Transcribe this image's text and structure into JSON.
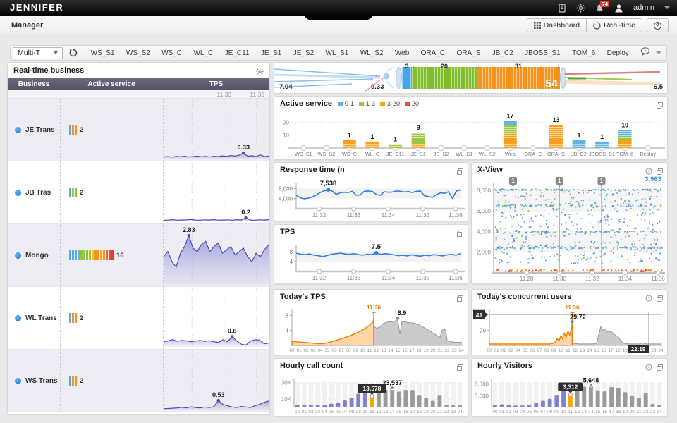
{
  "header": {
    "logo": "JENNIFER",
    "admin_label": "admin",
    "badge_count": "74"
  },
  "nav": {
    "breadcrumb": "Manager",
    "dashboard_btn": "Dashboard",
    "realtime_btn": "Real-time",
    "help_label": "?"
  },
  "toolbar": {
    "selector": "Multi-T",
    "tabs": [
      "WS_S1",
      "WS_S2",
      "WS_C",
      "WL_C",
      "JE_C11",
      "JE_S1",
      "JE_S2",
      "WL_S1",
      "WL_S2",
      "Web",
      "ORA_C",
      "ORA_S",
      "JB_C2",
      "JBOSS_S1",
      "TOM_6",
      "Deploy"
    ]
  },
  "business_panel": {
    "title": "Real-time business",
    "columns": [
      "Business",
      "Active service",
      "TPS"
    ],
    "times": [
      "11:33",
      "11:35"
    ],
    "rows": [
      {
        "name": "JE Trans",
        "count": "2",
        "shaded": true,
        "bars": [
          "#55a9e8",
          "#f7941d",
          "#f7941d"
        ]
      },
      {
        "name": "JB Tras",
        "count": "2",
        "shaded": false,
        "bars": [
          "#55a9e8",
          "#9dc63e",
          "#8bc02e"
        ]
      },
      {
        "name": "Mongo",
        "count": "16",
        "shaded": true,
        "bars": [
          "#55a9e8",
          "#55a9e8",
          "#55a9e8",
          "#6ab0e0",
          "#8cc63e",
          "#9dc63e",
          "#8bc02e",
          "#9dc63e",
          "#f7c51d",
          "#f7941d",
          "#f7941d",
          "#f7a41d",
          "#f7941d",
          "#ef6c1d",
          "#e8483f",
          "#e03a2f"
        ]
      },
      {
        "name": "WL Trans",
        "count": "2",
        "shaded": false,
        "bars": [
          "#55a9e8",
          "#f7941d",
          "#f7941d"
        ]
      },
      {
        "name": "WS Trans",
        "count": "2",
        "shaded": true,
        "bars": [
          "#55a9e8",
          "#f7941d",
          "#f7941d"
        ]
      }
    ]
  },
  "chart_data": [
    {
      "id": "business_tps",
      "type": "line",
      "ylim": [
        0,
        3
      ],
      "series": [
        {
          "name": "JE Trans",
          "peak_label": "0.33",
          "peak_index": 19,
          "values": [
            0.1,
            0.12,
            0.09,
            0.13,
            0.11,
            0.14,
            0.1,
            0.12,
            0.15,
            0.11,
            0.13,
            0.1,
            0.14,
            0.12,
            0.16,
            0.13,
            0.18,
            0.15,
            0.2,
            0.33,
            0.14,
            0.17,
            0.12,
            0.22,
            0.12,
            0.15
          ]
        },
        {
          "name": "JB Tras",
          "peak_label": "0.2",
          "peak_index": 18,
          "values": [
            0.07,
            0.08,
            0.1,
            0.07,
            0.08,
            0.09,
            0.11,
            0.08,
            0.07,
            0.09,
            0.08,
            0.1,
            0.07,
            0.08,
            0.09,
            0.07,
            0.1,
            0.08,
            0.2,
            0.08,
            0.07,
            0.09,
            0.08,
            0.1
          ]
        },
        {
          "name": "Mongo",
          "peak_label": "2.83",
          "peak_index": 6,
          "values": [
            1.6,
            1.9,
            1.3,
            1.0,
            1.8,
            2.2,
            2.83,
            2.1,
            1.9,
            2.3,
            2.5,
            1.9,
            2.2,
            2.4,
            1.8,
            2.0,
            2.2,
            1.7,
            1.9,
            2.1,
            1.6,
            1.3,
            1.8,
            1.6,
            2.0,
            2.3
          ]
        },
        {
          "name": "WL Trans",
          "peak_label": "0.6",
          "peak_index": 15,
          "values": [
            0.3,
            0.35,
            0.42,
            0.33,
            0.38,
            0.35,
            0.3,
            0.34,
            0.38,
            0.32,
            0.36,
            0.3,
            0.25,
            0.42,
            0.3,
            0.6,
            0.34,
            0.16,
            0.1,
            0.34,
            0.42,
            0.4,
            0.18,
            0.22
          ]
        },
        {
          "name": "WS Trans",
          "peak_label": "0.53",
          "peak_index": 12,
          "values": [
            0.05,
            0.06,
            0.08,
            0.1,
            0.13,
            0.1,
            0.16,
            0.12,
            0.1,
            0.15,
            0.12,
            0.17,
            0.53,
            0.3,
            0.22,
            0.15,
            0.12,
            0.18,
            0.15,
            0.12,
            0.22,
            0.3,
            0.42,
            0.5
          ]
        }
      ]
    },
    {
      "id": "tube",
      "type": "other",
      "left_value": "7.04",
      "drop_value": "0.33",
      "segments": [
        {
          "label": "3",
          "color": "#45a6e8",
          "width": 14
        },
        {
          "label": "20",
          "color": "#83bd2d",
          "width": 92
        },
        {
          "label": "31",
          "color": "#f7941d",
          "width": 118
        }
      ],
      "total": "54",
      "right_value": "6.5"
    },
    {
      "id": "active_service",
      "type": "bar",
      "title": "Active service",
      "legend": [
        {
          "label": "0-1",
          "color": "#64b1e4"
        },
        {
          "label": "1-3",
          "color": "#9dc640"
        },
        {
          "label": "3-20",
          "color": "#f7a01d"
        },
        {
          "label": "20-",
          "color": "#e8483f"
        }
      ],
      "categories": [
        "WS_S1",
        "WS_S2",
        "WS_C",
        "WL_C",
        "JE_C11",
        "JE_S1",
        "JE_S2",
        "WL_S1",
        "WL_S2",
        "Web",
        "ORA_C",
        "ORA_S",
        "JB_C2",
        "JBOSS_S1",
        "TOM_6",
        "Deploy"
      ],
      "ylim": [
        0,
        24
      ],
      "yticks": [
        10,
        20
      ],
      "stacks": [
        {
          "orange": 0,
          "green": 0,
          "blue": 0,
          "label": ""
        },
        {
          "orange": 0,
          "green": 0,
          "blue": 0,
          "label": ""
        },
        {
          "orange": 6,
          "green": 0,
          "blue": 0,
          "label": "1"
        },
        {
          "orange": 5,
          "green": 0,
          "blue": 0,
          "label": "1"
        },
        {
          "orange": 0,
          "green": 3,
          "blue": 0,
          "label": "1"
        },
        {
          "orange": 3,
          "green": 9,
          "blue": 0,
          "label": "9"
        },
        {
          "orange": 0,
          "green": 0,
          "blue": 0,
          "label": ""
        },
        {
          "orange": 0,
          "green": 0,
          "blue": 0,
          "label": ""
        },
        {
          "orange": 0,
          "green": 0,
          "blue": 0,
          "label": ""
        },
        {
          "orange": 12,
          "green": 6,
          "blue": 3,
          "label": "17"
        },
        {
          "orange": 0,
          "green": 0,
          "blue": 0,
          "label": ""
        },
        {
          "orange": 18,
          "green": 0,
          "blue": 0,
          "label": "13"
        },
        {
          "orange": 0,
          "green": 0,
          "blue": 6,
          "label": "1"
        },
        {
          "orange": 0,
          "green": 0,
          "blue": 5,
          "label": "1"
        },
        {
          "orange": 6,
          "green": 3,
          "blue": 5,
          "label": "10"
        },
        {
          "orange": 0,
          "green": 0,
          "blue": 0,
          "label": ""
        }
      ]
    },
    {
      "id": "response_time",
      "type": "line",
      "title": "Response time (n",
      "ylim": [
        0,
        9500
      ],
      "band": [
        4000,
        8000
      ],
      "yticks": [
        {
          "v": 4000,
          "label": "4,000"
        },
        {
          "v": 8000,
          "label": "8,000"
        }
      ],
      "xticks": [
        "11:32",
        "11:33",
        "11:34",
        "11:35",
        "11:36"
      ],
      "peak": {
        "index": 8,
        "label": "7,538"
      },
      "values": [
        5300,
        4300,
        3950,
        4200,
        4650,
        5400,
        6400,
        7100,
        7538,
        6900,
        5700,
        6350,
        6500,
        6400,
        6900,
        5300,
        5500,
        6900,
        7000,
        6850,
        5600,
        5300,
        6700,
        6500,
        6600,
        7000,
        6900,
        6600,
        6800,
        6400,
        6900,
        7000,
        5100,
        4800,
        4500,
        5600,
        6300,
        6100,
        6700,
        4100,
        7000,
        7400
      ]
    },
    {
      "id": "xview",
      "type": "scatter",
      "title": "X-View",
      "count_label": "3,963",
      "ylim": [
        0,
        8400
      ],
      "yticks": [
        {
          "v": 2000,
          "label": "2,000"
        },
        {
          "v": 4000,
          "label": "4,000"
        },
        {
          "v": 6000,
          "label": "6,000"
        },
        {
          "v": 8000,
          "label": "8,000"
        }
      ],
      "xticks": [
        "11:28",
        "11:30",
        "11:32",
        "11:34",
        "11:36"
      ],
      "flags": [
        {
          "label": "1",
          "x": 0.115
        },
        {
          "label": "1",
          "x": 0.39
        },
        {
          "label": "1",
          "x": 0.64
        }
      ],
      "seed": 11,
      "bands": [
        {
          "y": 8050,
          "n": 110,
          "jitter": 70
        },
        {
          "y": 6500,
          "n": 55,
          "jitter": 90
        },
        {
          "y": 3950,
          "n": 70,
          "jitter": 100
        },
        {
          "y": 2450,
          "n": 85,
          "jitter": 100
        }
      ],
      "uniform": {
        "n": 430,
        "lo": 900,
        "hi": 7900
      },
      "bottom": {
        "n": 70
      },
      "palette": [
        "#3b6fd4",
        "#58a7e0",
        "#7ab648",
        "#7d7ddc",
        "#39b0c4"
      ],
      "bottom_palette": [
        "#f7941d",
        "#e8483f"
      ]
    },
    {
      "id": "tps",
      "type": "line",
      "title": "TPS",
      "ylim": [
        0,
        10
      ],
      "band": [
        4,
        8
      ],
      "yticks": [
        {
          "v": 4,
          "label": "4"
        },
        {
          "v": 8,
          "label": "8"
        }
      ],
      "xticks": [
        "11:32",
        "11:33",
        "11:34",
        "11:35",
        "11:36"
      ],
      "peak": {
        "index": 18,
        "label": "7.5"
      },
      "values": [
        7.4,
        7.0,
        6.8,
        7.1,
        6.6,
        6.4,
        6.0,
        6.5,
        7.0,
        7.2,
        7.4,
        7.1,
        6.9,
        7.2,
        6.8,
        6.6,
        7.0,
        6.8,
        7.5,
        6.9,
        7.2,
        7.0,
        6.7,
        6.4,
        6.6,
        6.3,
        6.7,
        6.4,
        6.2,
        6.6,
        6.4,
        6.8,
        6.6,
        6.3,
        6.7,
        6.9,
        6.6,
        7.2
      ]
    },
    {
      "id": "todays_tps",
      "type": "area",
      "title": "Today's TPS",
      "ylim": [
        0,
        9
      ],
      "xlim": [
        0,
        24
      ],
      "yticks": [
        {
          "v": 4,
          "label": "4"
        },
        {
          "v": 8,
          "label": "8"
        }
      ],
      "xticks": [
        "00",
        "01",
        "02",
        "03",
        "04",
        "05",
        "06",
        "07",
        "08",
        "09",
        "10",
        "11",
        "12",
        "13",
        "14",
        "15",
        "16",
        "17",
        "18",
        "19",
        "20",
        "21",
        "22",
        "23",
        "24"
      ],
      "now": {
        "x": 11.6,
        "label": "11:36"
      },
      "peak": {
        "x": 15,
        "y": 6.9,
        "label": "6.9"
      },
      "today": {
        "x": [
          0,
          0.5,
          1,
          1.5,
          2,
          2.5,
          3,
          3.5,
          4,
          4.5,
          5,
          5.5,
          6,
          6.5,
          7,
          7.5,
          8,
          8.5,
          9,
          9.5,
          10,
          10.5,
          11,
          11.5,
          11.6
        ],
        "v": [
          1.1,
          1.0,
          0.9,
          0.85,
          0.8,
          0.7,
          0.6,
          0.5,
          0.45,
          0.5,
          0.7,
          0.9,
          1.2,
          1.5,
          1.8,
          2.1,
          2.4,
          2.8,
          3.2,
          3.6,
          4.1,
          4.7,
          5.4,
          6.2,
          7.2
        ]
      },
      "yesterday": {
        "x": [
          11.6,
          12,
          12.5,
          13,
          13.5,
          14,
          14.5,
          15,
          15.3,
          15.6,
          16,
          16.5,
          17,
          17.5,
          18,
          18.5,
          19,
          19.5,
          20,
          20.5,
          21,
          21.3,
          21.8,
          22,
          22.5,
          23,
          23.5,
          24
        ],
        "v": [
          5.1,
          4.6,
          4.9,
          5.9,
          6.2,
          6.3,
          6.4,
          6.9,
          3.0,
          6.4,
          6.3,
          6.1,
          6.0,
          5.8,
          5.5,
          5.0,
          4.5,
          3.9,
          3.3,
          2.7,
          2.2,
          4.1,
          4.2,
          1.3,
          1.0,
          0.9,
          0.8,
          0.9
        ]
      }
    },
    {
      "id": "concurrent",
      "type": "area",
      "title": "Today's concurrent users",
      "ylim": [
        0,
        45
      ],
      "xlim": [
        0,
        24
      ],
      "yticks": [
        {
          "v": 20,
          "label": "20"
        }
      ],
      "maxline": {
        "v": 41,
        "label": "41"
      },
      "xticks": [
        "00",
        "01",
        "02",
        "03",
        "04",
        "05",
        "06",
        "07",
        "08",
        "09",
        "10",
        "11",
        "12",
        "13",
        "14",
        "15",
        "16",
        "17",
        "18",
        "19",
        "20",
        "21",
        "22",
        "23",
        "24"
      ],
      "now": {
        "x": 11.6,
        "label": "11:36"
      },
      "peak": {
        "x": 11.6,
        "y": 29.72,
        "label": "29.72"
      },
      "marker": {
        "x": 22.32,
        "label": "22:19"
      },
      "today": {
        "x": [
          0,
          0.5,
          1,
          1.5,
          2,
          2.5,
          3,
          3.5,
          4,
          4.5,
          5,
          5.5,
          6,
          6.5,
          7,
          7.5,
          8,
          8.5,
          9,
          9.25,
          9.5,
          9.75,
          10,
          10.25,
          10.5,
          10.75,
          11,
          11.25,
          11.5,
          11.6
        ],
        "v": [
          2,
          2,
          2,
          2,
          2,
          2,
          2,
          2,
          2,
          2,
          2,
          2,
          2,
          2,
          2,
          2,
          2,
          2,
          3,
          5,
          9,
          6,
          13,
          9,
          16,
          11,
          19,
          14,
          22,
          29.72
        ]
      },
      "yesterday": {
        "x": [
          11.6,
          12,
          12.5,
          13,
          13.5,
          14,
          14.5,
          15,
          15.3,
          15.6,
          15.9,
          16.2,
          16.5,
          17,
          17.3,
          17.6,
          18,
          18.4,
          18.8,
          19.5,
          20,
          20.5,
          21,
          21.5,
          21.8,
          22,
          22.5,
          23,
          23.5,
          24
        ],
        "v": [
          3,
          2.5,
          2,
          2,
          2,
          2,
          2,
          3,
          14,
          25,
          20,
          22,
          18,
          19,
          16,
          14,
          12,
          6,
          3,
          2,
          2,
          2,
          2,
          3.5,
          2.5,
          2,
          2,
          2,
          2,
          2
        ]
      }
    },
    {
      "id": "hourly_calls",
      "type": "bar",
      "title": "Hourly call count",
      "ylim": [
        0,
        33000
      ],
      "yticks": [
        {
          "v": 10000,
          "label": "10K"
        },
        {
          "v": 30000,
          "label": "30K"
        }
      ],
      "categories": [
        "00",
        "01",
        "02",
        "03",
        "04",
        "05",
        "06",
        "07",
        "08",
        "09",
        "10",
        "11",
        "12",
        "13",
        "14",
        "15",
        "16",
        "17",
        "18",
        "19",
        "20",
        "21",
        "22",
        "23",
        "24"
      ],
      "values": [
        3000,
        3500,
        3300,
        3400,
        3400,
        4500,
        6000,
        8500,
        11500,
        16500,
        17000,
        13578,
        17000,
        21500,
        23537,
        19000,
        21000,
        21000,
        15000,
        11500,
        8000,
        15000,
        3000,
        2500,
        3000
      ],
      "today_color": "#8282cf",
      "current_color": "#f5a800",
      "past_color": "#9a9a9a",
      "current_index": 11,
      "badge": "13,578",
      "peak": {
        "index": 14,
        "label": "23,537"
      }
    },
    {
      "id": "hourly_visitors",
      "type": "bar",
      "title": "Hourly Visitors",
      "ylim": [
        0,
        7000
      ],
      "yticks": [
        {
          "v": 3000,
          "label": "3,000"
        },
        {
          "v": 6000,
          "label": "6,000"
        }
      ],
      "categories": [
        "00",
        "01",
        "02",
        "03",
        "04",
        "05",
        "06",
        "07",
        "08",
        "09",
        "10",
        "11",
        "12",
        "13",
        "14",
        "15",
        "16",
        "17",
        "18",
        "19",
        "20",
        "21",
        "22",
        "23",
        "24"
      ],
      "values": [
        700,
        800,
        600,
        500,
        500,
        600,
        1200,
        1700,
        2200,
        3200,
        4200,
        3312,
        4400,
        5300,
        5648,
        4400,
        4100,
        5200,
        4900,
        3900,
        3100,
        2400,
        3800,
        900,
        700
      ],
      "today_color": "#8282cf",
      "current_color": "#f5a800",
      "past_color": "#9a9a9a",
      "current_index": 11,
      "badge": "3,312",
      "peak": {
        "index": 14,
        "label": "5,648"
      }
    }
  ]
}
